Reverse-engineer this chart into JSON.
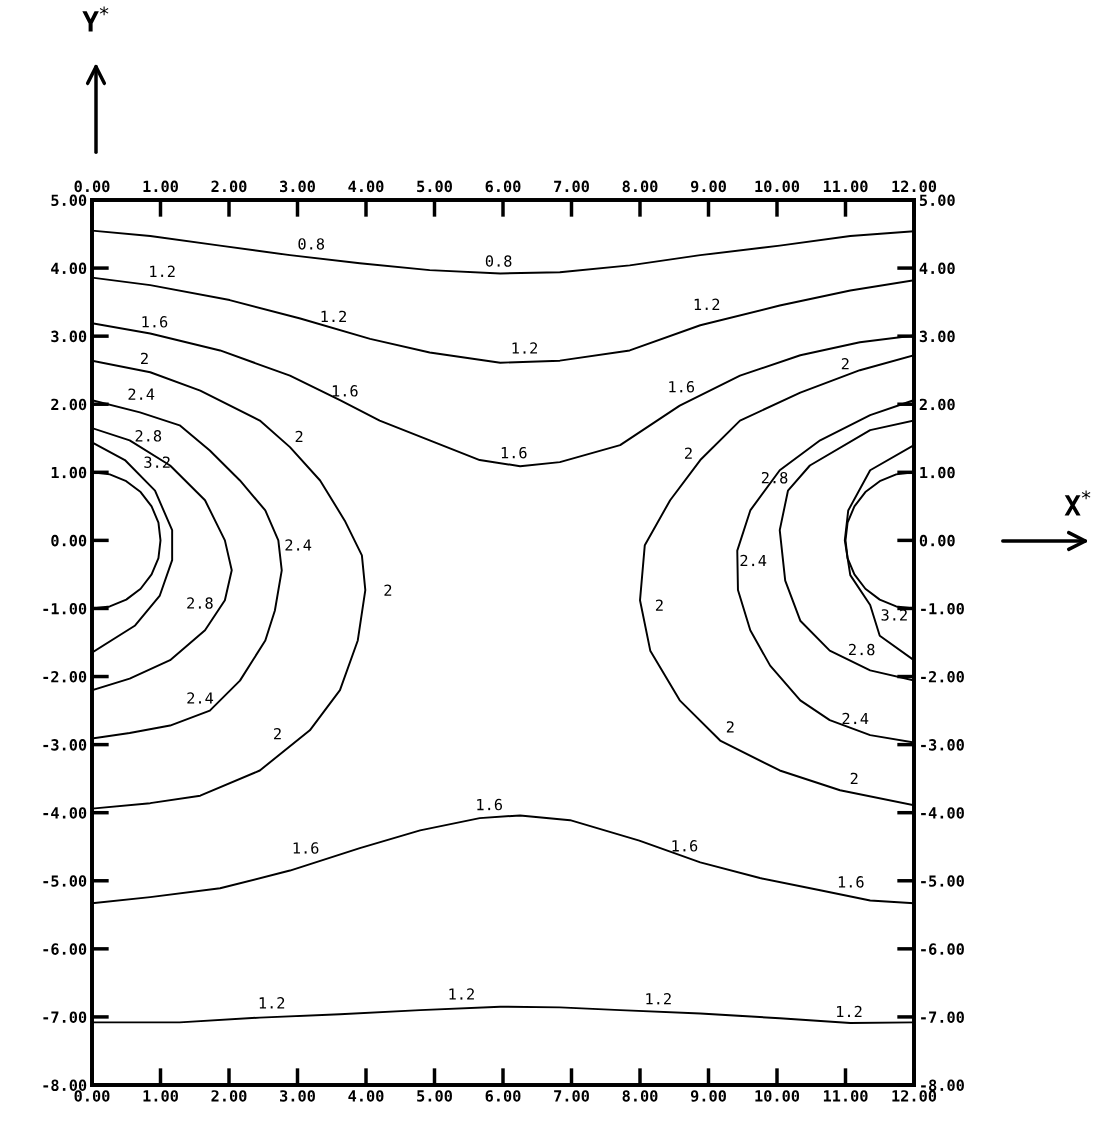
{
  "chart_data": {
    "type": "line",
    "xlabel": "X$^{*}$",
    "xlim": [
      0,
      12
    ],
    "ylim": [
      -8,
      5
    ],
    "xticks": [
      {
        "value": 0,
        "label": "0.00"
      },
      {
        "value": 1,
        "label": "1.00"
      },
      {
        "value": 2,
        "label": "2.00"
      },
      {
        "value": 3,
        "label": "3.00"
      },
      {
        "value": 4,
        "label": "4.00"
      },
      {
        "value": 5,
        "label": "5.00"
      },
      {
        "value": 6,
        "label": "6.00"
      },
      {
        "value": 7,
        "label": "7.00"
      },
      {
        "value": 8,
        "label": "8.00"
      },
      {
        "value": 9,
        "label": "9.00"
      },
      {
        "value": 10,
        "label": "10.00"
      },
      {
        "value": 11,
        "label": "11.00"
      },
      {
        "value": 12,
        "label": "12.00"
      }
    ],
    "x2lim": [
      0,
      12
    ],
    "x2ticks": [
      {
        "value": 0,
        "label": "0.00"
      },
      {
        "value": 1,
        "label": "1.00"
      },
      {
        "value": 2,
        "label": "2.00"
      },
      {
        "value": 3,
        "label": "3.00"
      },
      {
        "value": 4,
        "label": "4.00"
      },
      {
        "value": 5,
        "label": "5.00"
      },
      {
        "value": 6,
        "label": "6.00"
      },
      {
        "value": 7,
        "label": "7.00"
      },
      {
        "value": 8,
        "label": "8.00"
      },
      {
        "value": 9,
        "label": "9.00"
      },
      {
        "value": 10,
        "label": "10.00"
      },
      {
        "value": 11,
        "label": "11.00"
      },
      {
        "value": 12,
        "label": "12.00"
      }
    ],
    "yticks": [
      {
        "value": -8,
        "label": "-8.00"
      },
      {
        "value": -7,
        "label": "-7.00"
      },
      {
        "value": -6,
        "label": "-6.00"
      },
      {
        "value": -5,
        "label": "-5.00"
      },
      {
        "value": -4,
        "label": "-4.00"
      },
      {
        "value": -3,
        "label": "-3.00"
      },
      {
        "value": -2,
        "label": "-2.00"
      },
      {
        "value": -1,
        "label": "-1.00"
      },
      {
        "value": 0,
        "label": "0.00"
      },
      {
        "value": 1,
        "label": "1.00"
      },
      {
        "value": 2,
        "label": "2.00"
      },
      {
        "value": 3,
        "label": "3.00"
      },
      {
        "value": 4,
        "label": "4.00"
      },
      {
        "value": 5,
        "label": "5.00"
      }
    ],
    "y2lim": [
      -8,
      5
    ],
    "y2ticks": [
      {
        "value": -8,
        "label": "-8.00"
      },
      {
        "value": -7,
        "label": "-7.00"
      },
      {
        "value": -6,
        "label": "-6.00"
      },
      {
        "value": -5,
        "label": "-5.00"
      },
      {
        "value": -4,
        "label": "-4.00"
      },
      {
        "value": -3,
        "label": "-3.00"
      },
      {
        "value": -2,
        "label": "-2.00"
      },
      {
        "value": -1,
        "label": "-1.00"
      },
      {
        "value": 0,
        "label": "0.00"
      },
      {
        "value": 1,
        "label": "1.00"
      },
      {
        "value": 2,
        "label": "2.00"
      },
      {
        "value": 3,
        "label": "3.00"
      },
      {
        "value": 4,
        "label": "4.00"
      },
      {
        "value": 5,
        "label": "5.00"
      }
    ],
    "grid": false,
    "marker": "none",
    "line_style": "solid",
    "series": [
      {
        "color": "#000000",
        "x": [
          0,
          0.85,
          1.87,
          2.89,
          3.91,
          4.93,
          5.96,
          6.83,
          7.85,
          8.88,
          10.04,
          11.07,
          12
        ],
        "values": [
          4.55,
          4.47,
          4.33,
          4.19,
          4.07,
          3.97,
          3.92,
          3.94,
          4.04,
          4.19,
          4.33,
          4.47,
          4.54
        ]
      },
      {
        "color": "#000000",
        "x": [
          0,
          0.85,
          2.01,
          3.04,
          4.06,
          4.93,
          5.96,
          6.83,
          7.85,
          8.88,
          10.04,
          11.07,
          12
        ],
        "values": [
          3.86,
          3.75,
          3.53,
          3.26,
          2.96,
          2.76,
          2.61,
          2.64,
          2.79,
          3.16,
          3.45,
          3.67,
          3.82
        ]
      },
      {
        "color": "#000000",
        "x": [
          0,
          0.85,
          1.87,
          2.89,
          3.62,
          4.2,
          4.93,
          5.66,
          6.25,
          6.83,
          7.71,
          8.58,
          9.46,
          10.34,
          11.21,
          12
        ],
        "values": [
          3.19,
          3.04,
          2.79,
          2.42,
          2.06,
          1.76,
          1.47,
          1.18,
          1.09,
          1.15,
          1.4,
          1.98,
          2.42,
          2.72,
          2.91,
          3.01
        ]
      },
      {
        "color": "#000000",
        "x": [
          0,
          0.85,
          1.58,
          2.45,
          2.89,
          3.33,
          3.69,
          3.94,
          3.99,
          3.88,
          3.62,
          3.18,
          2.45,
          1.58,
          0.85,
          0
        ],
        "values": [
          2.64,
          2.47,
          2.2,
          1.76,
          1.37,
          0.88,
          0.29,
          -0.22,
          -0.73,
          -1.47,
          -2.2,
          -2.79,
          -3.38,
          -3.75,
          -3.86,
          -3.94
        ]
      },
      {
        "color": "#000000",
        "x": [
          12,
          11.21,
          10.34,
          9.46,
          8.88,
          8.44,
          8.07,
          8.0,
          8.15,
          8.58,
          9.17,
          10.04,
          10.92,
          12
        ],
        "values": [
          2.72,
          2.5,
          2.17,
          1.76,
          1.18,
          0.59,
          -0.07,
          -0.88,
          -1.62,
          -2.35,
          -2.94,
          -3.38,
          -3.67,
          -3.89
        ]
      },
      {
        "color": "#000000",
        "x": [
          0,
          0.7,
          1.28,
          1.72,
          2.16,
          2.53,
          2.72,
          2.77,
          2.67,
          2.53,
          2.16,
          1.72,
          1.14,
          0.55,
          0
        ],
        "values": [
          2.06,
          1.88,
          1.69,
          1.32,
          0.88,
          0.44,
          0,
          -0.44,
          -1.03,
          -1.47,
          -2.06,
          -2.5,
          -2.72,
          -2.83,
          -2.91
        ]
      },
      {
        "color": "#000000",
        "x": [
          12,
          11.36,
          10.63,
          10.04,
          9.61,
          9.42,
          9.43,
          9.61,
          9.9,
          10.34,
          10.77,
          11.36,
          12
        ],
        "values": [
          2.06,
          1.84,
          1.47,
          1.03,
          0.44,
          -0.15,
          -0.73,
          -1.32,
          -1.84,
          -2.35,
          -2.64,
          -2.86,
          -2.97
        ]
      },
      {
        "color": "#000000",
        "x": [
          0,
          0.55,
          1.14,
          1.65,
          1.94,
          2.04,
          1.94,
          1.65,
          1.14,
          0.55,
          0
        ],
        "values": [
          1.65,
          1.47,
          1.1,
          0.59,
          0,
          -0.44,
          -0.88,
          -1.32,
          -1.76,
          -2.03,
          -2.2
        ]
      },
      {
        "color": "#000000",
        "x": [
          12,
          11.36,
          10.48,
          10.16,
          10.04,
          10.12,
          10.34,
          10.77,
          11.36,
          12
        ],
        "values": [
          1.76,
          1.62,
          1.1,
          0.73,
          0.15,
          -0.59,
          -1.18,
          -1.62,
          -1.91,
          -2.06
        ]
      },
      {
        "color": "#000000",
        "x": [
          0,
          0.48,
          0.92,
          1.17,
          1.17,
          0.99,
          0.63,
          0
        ],
        "values": [
          1.44,
          1.18,
          0.73,
          0.15,
          -0.29,
          -0.81,
          -1.25,
          -1.65
        ]
      },
      {
        "color": "#000000",
        "x": [
          12,
          11.36,
          11.04,
          10.99,
          11.07,
          11.36,
          11.5,
          12
        ],
        "values": [
          1.4,
          1.03,
          0.44,
          0,
          -0.51,
          -0.95,
          -1.4,
          -1.76
        ]
      },
      {
        "color": "#000000",
        "x": [
          0,
          0.26,
          0.5,
          0.71,
          0.87,
          0.97,
          1,
          0.97,
          0.87,
          0.71,
          0.5,
          0.26,
          0
        ],
        "values": [
          1,
          0.97,
          0.87,
          0.71,
          0.5,
          0.26,
          0,
          -0.26,
          -0.5,
          -0.71,
          -0.87,
          -0.97,
          -1
        ]
      },
      {
        "color": "#000000",
        "x": [
          12,
          11.74,
          11.5,
          11.29,
          11.13,
          11.03,
          11,
          11.03,
          11.13,
          11.29,
          11.5,
          11.74,
          12
        ],
        "values": [
          1,
          0.97,
          0.87,
          0.71,
          0.5,
          0.26,
          0,
          -0.26,
          -0.5,
          -0.71,
          -0.87,
          -0.97,
          -1
        ]
      },
      {
        "color": "#000000",
        "x": [
          0,
          0.85,
          1.87,
          2.89,
          3.91,
          4.79,
          5.66,
          6.25,
          6.98,
          7.99,
          8.88,
          9.75,
          10.63,
          11.36,
          12
        ],
        "values": [
          -5.33,
          -5.24,
          -5.11,
          -4.85,
          -4.52,
          -4.26,
          -4.08,
          -4.04,
          -4.11,
          -4.41,
          -4.73,
          -4.96,
          -5.14,
          -5.29,
          -5.33
        ]
      },
      {
        "color": "#000000",
        "x": [
          0,
          1.28,
          2.45,
          3.62,
          4.79,
          5.96,
          6.83,
          7.71,
          8.88,
          10.04,
          11.07,
          12
        ],
        "values": [
          -7.08,
          -7.08,
          -7.01,
          -6.96,
          -6.9,
          -6.85,
          -6.86,
          -6.9,
          -6.95,
          -7.02,
          -7.09,
          -7.08
        ]
      }
    ],
    "annotations": [
      "Y$^{*}$",
      {
        "text": "0.8",
        "x": 3.18,
        "y": 4.16
      },
      {
        "text": "0.8",
        "x": 5.94,
        "y": 3.92
      },
      {
        "text": "1.2",
        "x": 0.99,
        "y": 3.75
      },
      {
        "text": "1.2",
        "x": 3.47,
        "y": 3.08
      },
      {
        "text": "1.2",
        "x": 6.32,
        "y": 2.64
      },
      {
        "text": "1.2",
        "x": 9.02,
        "y": 3.26
      },
      {
        "text": "1.6",
        "x": 0.88,
        "y": 3.01
      },
      {
        "text": "1.6",
        "x": 3.59,
        "y": 1.98
      },
      {
        "text": "1.6",
        "x": 6.13,
        "y": 1.09
      },
      {
        "text": "1.6",
        "x": 8.7,
        "y": 2.04
      },
      {
        "text": "2",
        "x": 0.73,
        "y": 2.47
      },
      {
        "text": "2",
        "x": 2.86,
        "y": 1.32
      },
      {
        "text": "2",
        "x": 4.03,
        "y": -0.78
      },
      {
        "text": "2",
        "x": 2.86,
        "y": -3.05
      },
      {
        "text": "2",
        "x": 11.07,
        "y": 2.38
      },
      {
        "text": "2",
        "x": 8.92,
        "y": 1.1
      },
      {
        "text": "2",
        "x": 8.0,
        "y": -1.03
      },
      {
        "text": "2",
        "x": 9.14,
        "y": -2.94
      },
      {
        "text": "2",
        "x": 11.09,
        "y": -3.7
      },
      {
        "text": "2.4",
        "x": 0.67,
        "y": 1.94
      },
      {
        "text": "2.4",
        "x": 2.72,
        "y": -0.12
      },
      {
        "text": "2.4",
        "x": 1.65,
        "y": -2.53
      },
      {
        "text": "2.4",
        "x": 9.36,
        "y": -0.32
      },
      {
        "text": "2.4",
        "x": 11.07,
        "y": -2.83
      },
      {
        "text": "2.8",
        "x": 0.7,
        "y": 1.32
      },
      {
        "text": "2.8",
        "x": 1.8,
        "y": -1.09
      },
      {
        "text": "2.8",
        "x": 10.16,
        "y": 0.73
      },
      {
        "text": "2.8",
        "x": 11.14,
        "y": -1.82
      },
      {
        "text": "3.2",
        "x": 0.77,
        "y": 0.95
      },
      {
        "text": "3.2",
        "x": 11.44,
        "y": -1.2
      },
      {
        "text": "1.6",
        "x": 3.18,
        "y": -4.73
      },
      {
        "text": "1.6",
        "x": 5.81,
        "y": -4.07
      },
      {
        "text": "1.6",
        "x": 8.58,
        "y": -4.7
      },
      {
        "text": "1.6",
        "x": 11.04,
        "y": -5.22
      },
      {
        "text": "1.2",
        "x": 2.63,
        "y": -6.98
      },
      {
        "text": "1.2",
        "x": 5.4,
        "y": -6.85
      },
      {
        "text": "1.2",
        "x": 8.26,
        "y": -6.92
      },
      {
        "text": "1.2",
        "x": 11.04,
        "y": -7.11
      }
    ]
  }
}
